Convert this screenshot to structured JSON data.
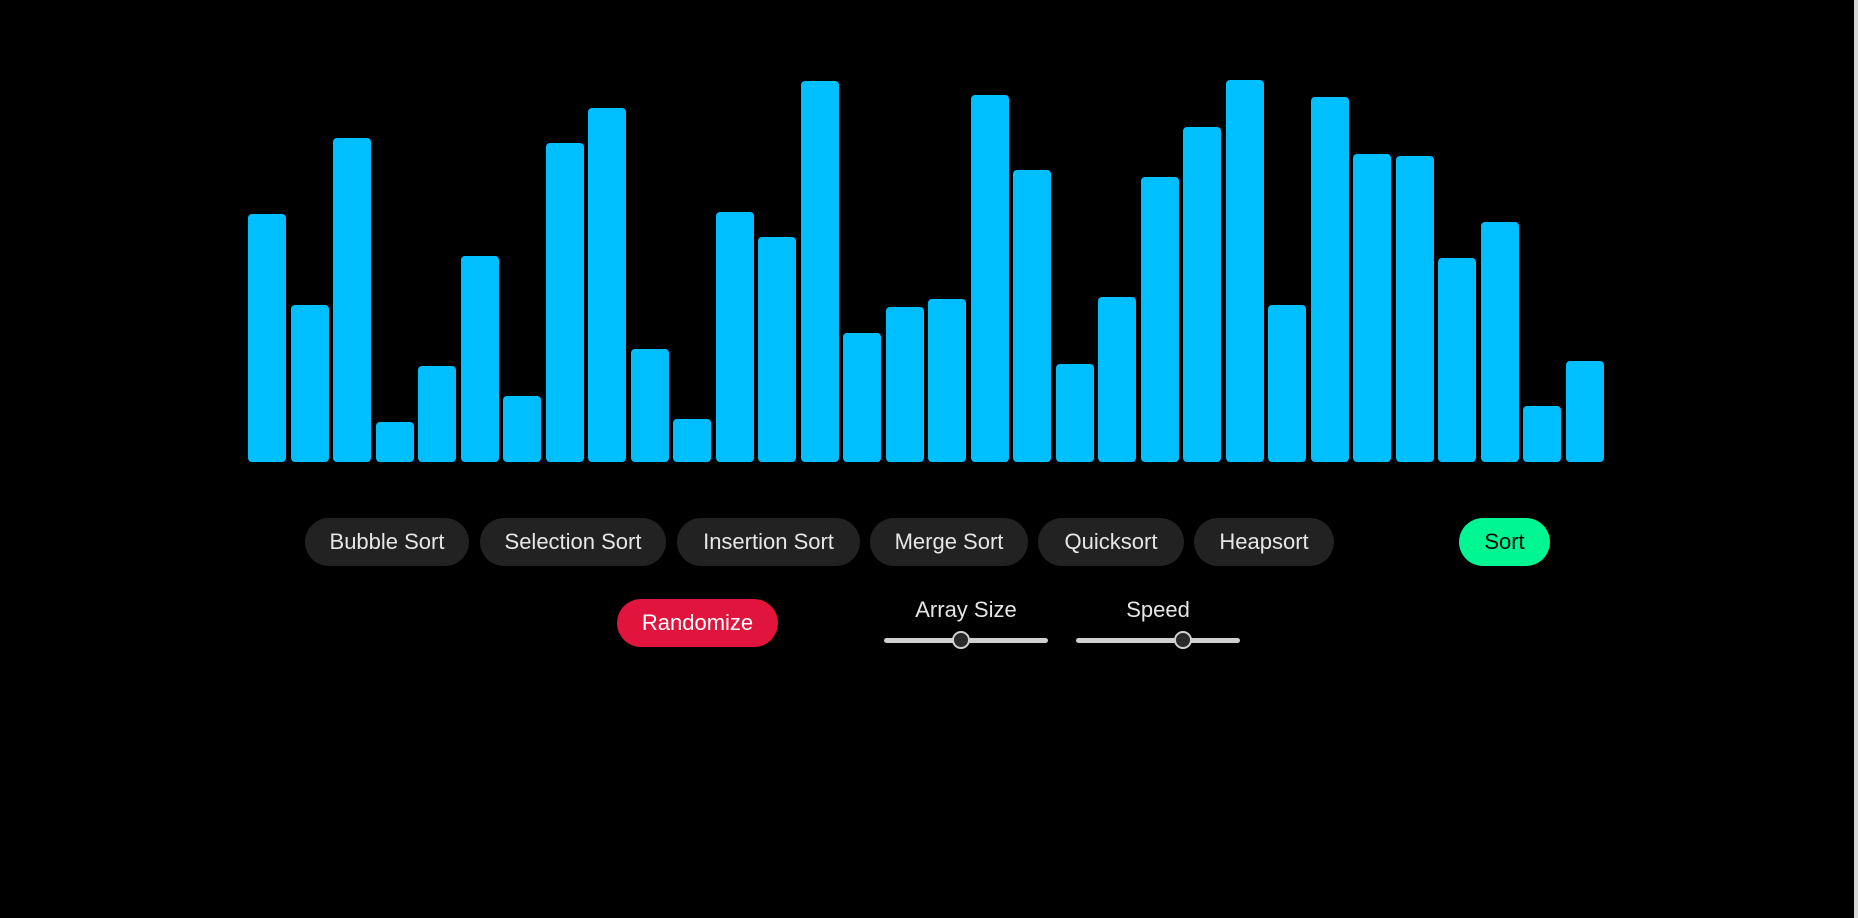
{
  "bars": {
    "color": "#00bfff",
    "values": [
      0.649,
      0.412,
      0.847,
      0.105,
      0.252,
      0.54,
      0.173,
      0.834,
      0.926,
      0.297,
      0.113,
      0.655,
      0.588,
      0.997,
      0.338,
      0.406,
      0.427,
      0.962,
      0.765,
      0.256,
      0.432,
      0.747,
      0.878,
      1.0,
      0.411,
      0.955,
      0.805,
      0.8,
      0.535,
      0.629,
      0.147,
      0.264
    ]
  },
  "algorithms": [
    {
      "label": "Bubble Sort",
      "name": "bubble-sort-button"
    },
    {
      "label": "Selection Sort",
      "name": "selection-sort-button"
    },
    {
      "label": "Insertion Sort",
      "name": "insertion-sort-button"
    },
    {
      "label": "Merge Sort",
      "name": "merge-sort-button"
    },
    {
      "label": "Quicksort",
      "name": "quicksort-button"
    },
    {
      "label": "Heapsort",
      "name": "heapsort-button"
    }
  ],
  "sort_button": {
    "label": "Sort",
    "color": "#00f593"
  },
  "randomize_button": {
    "label": "Randomize",
    "color": "#e0143c"
  },
  "sliders": {
    "array_size": {
      "label": "Array Size",
      "value": 0.47
    },
    "speed": {
      "label": "Speed",
      "value": 0.65
    }
  }
}
